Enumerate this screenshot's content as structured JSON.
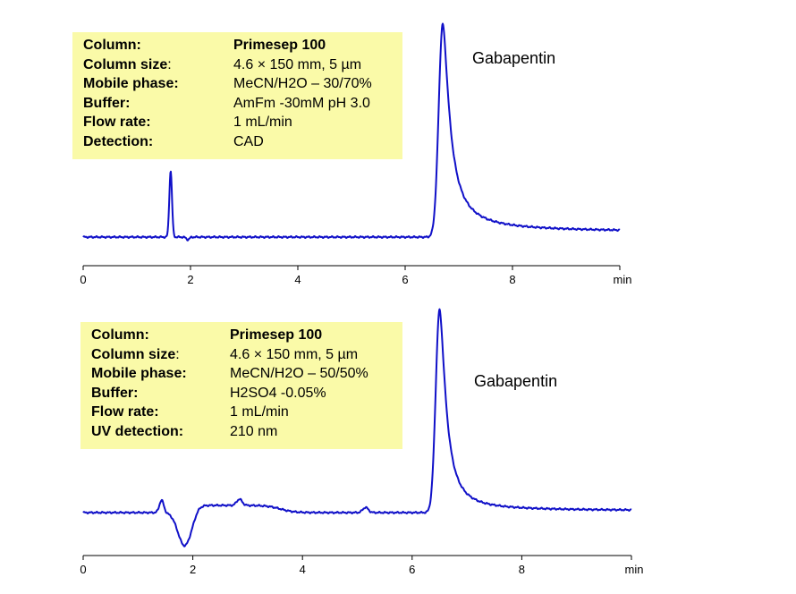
{
  "colors": {
    "trace": "#1010c8",
    "info_box_bg": "#fafaa8",
    "axis": "#000000"
  },
  "panels": [
    {
      "info": [
        {
          "key": "Column:",
          "value": "Primesep 100",
          "value_bold": true
        },
        {
          "key": "Column size",
          "key_suffix": ":",
          "value": "4.6 × 150 mm, 5 µm"
        },
        {
          "key": "Mobile phase:",
          "value": "MeCN/H2O – 30/70%"
        },
        {
          "key": "Buffer:",
          "value": "AmFm -30mM pH 3.0"
        },
        {
          "key": "Flow rate:",
          "value": "1 mL/min"
        },
        {
          "key": "Detection:",
          "value": "CAD"
        }
      ],
      "peak_label": "Gabapentin"
    },
    {
      "info": [
        {
          "key": "Column:",
          "value": "Primesep 100",
          "value_bold": true
        },
        {
          "key": "Column size",
          "key_suffix": ":",
          "value": "4.6 × 150 mm, 5 µm"
        },
        {
          "key": "Mobile phase:",
          "value": "MeCN/H2O –  50/50%"
        },
        {
          "key": "Buffer:",
          "value": "H2SO4 -0.05%"
        },
        {
          "key": "Flow rate:",
          "value": "1 mL/min"
        },
        {
          "key": "UV detection:",
          "value": "210 nm"
        }
      ],
      "peak_label": "Gabapentin"
    }
  ],
  "chart_data": [
    {
      "type": "line",
      "xlabel": "min",
      "xlim": [
        0,
        10
      ],
      "ylim": [
        -0.05,
        1.05
      ],
      "xticks": [
        0,
        2,
        4,
        6,
        8
      ],
      "xtick_labels": [
        "0",
        "2",
        "4",
        "6",
        "8"
      ],
      "baseline": 0.0,
      "peaks": [
        {
          "center": 1.63,
          "height": 0.31,
          "width": 0.025
        },
        {
          "center": 6.7,
          "height": 1.0,
          "width": 0.075,
          "tail": 0.09,
          "label": "Gabapentin"
        }
      ],
      "dips": [
        {
          "center": 1.95,
          "depth": 0.012,
          "width": 0.03
        }
      ]
    },
    {
      "type": "line",
      "xlabel": "min",
      "xlim": [
        0,
        10
      ],
      "ylim": [
        -0.2,
        1.0
      ],
      "xticks": [
        0,
        2,
        4,
        6,
        8
      ],
      "xtick_labels": [
        "0",
        "2",
        "4",
        "6",
        "8"
      ],
      "baseline": 0.0,
      "peaks": [
        {
          "center": 1.43,
          "height": 0.06,
          "width": 0.04
        },
        {
          "center": 2.85,
          "height": 0.03,
          "width": 0.05
        },
        {
          "center": 5.15,
          "height": 0.025,
          "width": 0.05
        },
        {
          "center": 6.5,
          "height": 0.98,
          "width": 0.07,
          "tail": 0.08,
          "label": "Gabapentin"
        }
      ],
      "dips": [
        {
          "center": 1.85,
          "depth": 0.16,
          "width": 0.12
        }
      ],
      "plateau": {
        "start": 2.05,
        "end": 3.6,
        "level": 0.035
      }
    }
  ]
}
